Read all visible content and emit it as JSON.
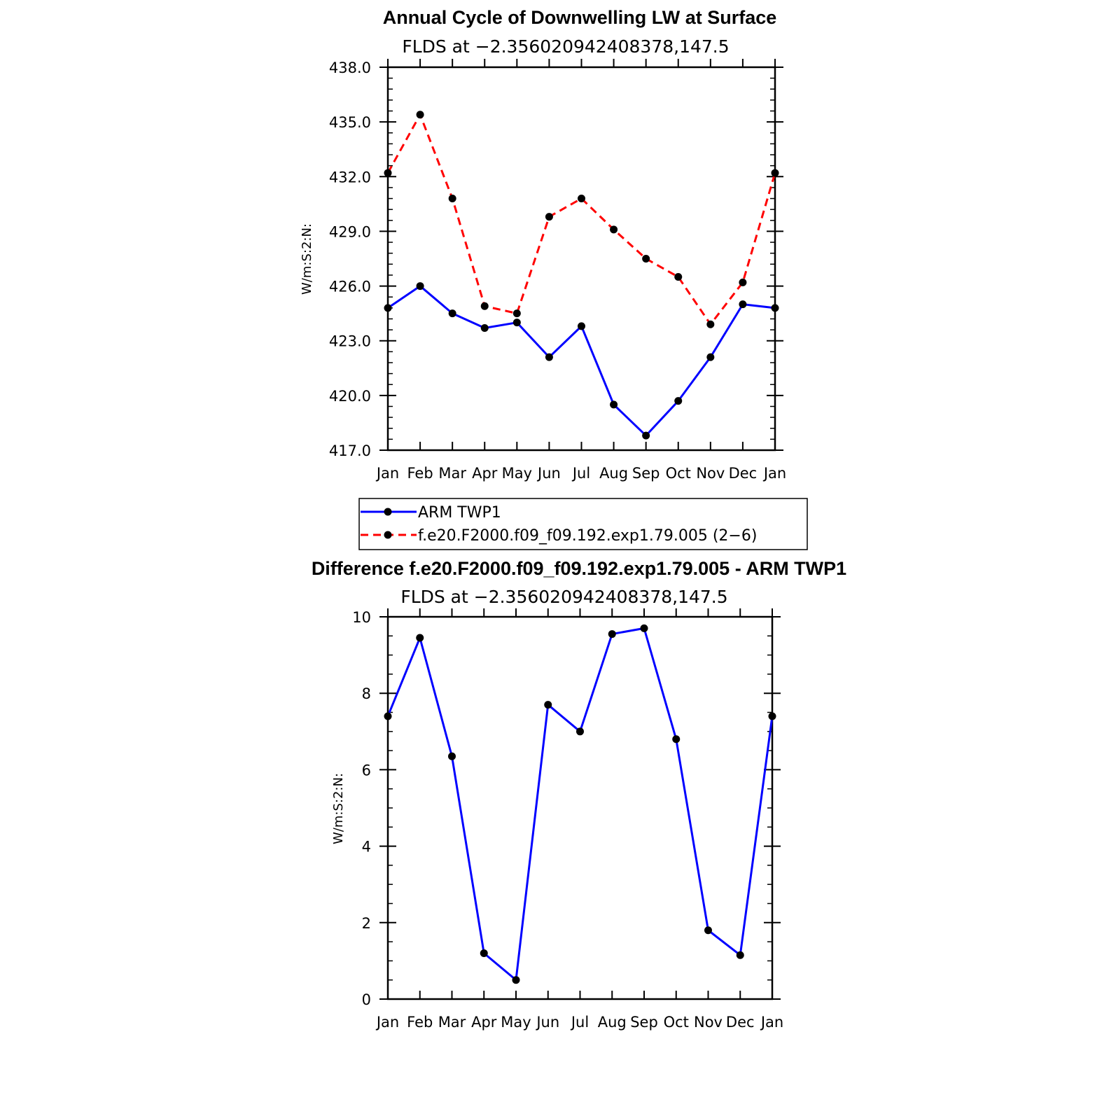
{
  "chart_data": [
    {
      "type": "line",
      "title": "Annual Cycle of Downwelling LW at Surface",
      "subtitle": "FLDS at −2.356020942408378,147.5",
      "xlabel": "",
      "ylabel": "W/m:S:2:N:",
      "categories": [
        "Jan",
        "Feb",
        "Mar",
        "Apr",
        "May",
        "Jun",
        "Jul",
        "Aug",
        "Sep",
        "Oct",
        "Nov",
        "Dec",
        "Jan"
      ],
      "ylim": [
        417.0,
        438.0
      ],
      "yticks": [
        "417.0",
        "420.0",
        "423.0",
        "426.0",
        "429.0",
        "432.0",
        "435.0",
        "438.0"
      ],
      "grid": false,
      "series": [
        {
          "name": "ARM TWP1",
          "color": "#0000ff",
          "dash": "solid",
          "values": [
            424.8,
            426.0,
            424.5,
            423.7,
            424.0,
            422.1,
            423.8,
            419.5,
            417.8,
            419.7,
            422.1,
            425.0,
            424.8
          ]
        },
        {
          "name": "f.e20.F2000.f09_f09.192.exp1.79.005 (2−6)",
          "color": "#ff0000",
          "dash": "dashed",
          "values": [
            432.2,
            435.4,
            430.8,
            424.9,
            424.5,
            429.8,
            430.8,
            429.1,
            427.5,
            426.5,
            423.9,
            426.2,
            432.2
          ]
        }
      ],
      "legend": "below"
    },
    {
      "type": "line",
      "title": "Difference f.e20.F2000.f09_f09.192.exp1.79.005 - ARM TWP1",
      "subtitle": "FLDS at −2.356020942408378,147.5",
      "xlabel": "",
      "ylabel": "W/m:S:2:N:",
      "categories": [
        "Jan",
        "Feb",
        "Mar",
        "Apr",
        "May",
        "Jun",
        "Jul",
        "Aug",
        "Sep",
        "Oct",
        "Nov",
        "Dec",
        "Jan"
      ],
      "ylim": [
        0,
        10
      ],
      "yticks": [
        "0",
        "2",
        "4",
        "6",
        "8",
        "10"
      ],
      "grid": false,
      "series": [
        {
          "color": "#0000ff",
          "dash": "solid",
          "values": [
            7.4,
            9.45,
            6.35,
            1.2,
            0.5,
            7.7,
            7.0,
            9.55,
            9.7,
            6.8,
            1.8,
            1.15,
            7.4
          ]
        }
      ]
    }
  ]
}
